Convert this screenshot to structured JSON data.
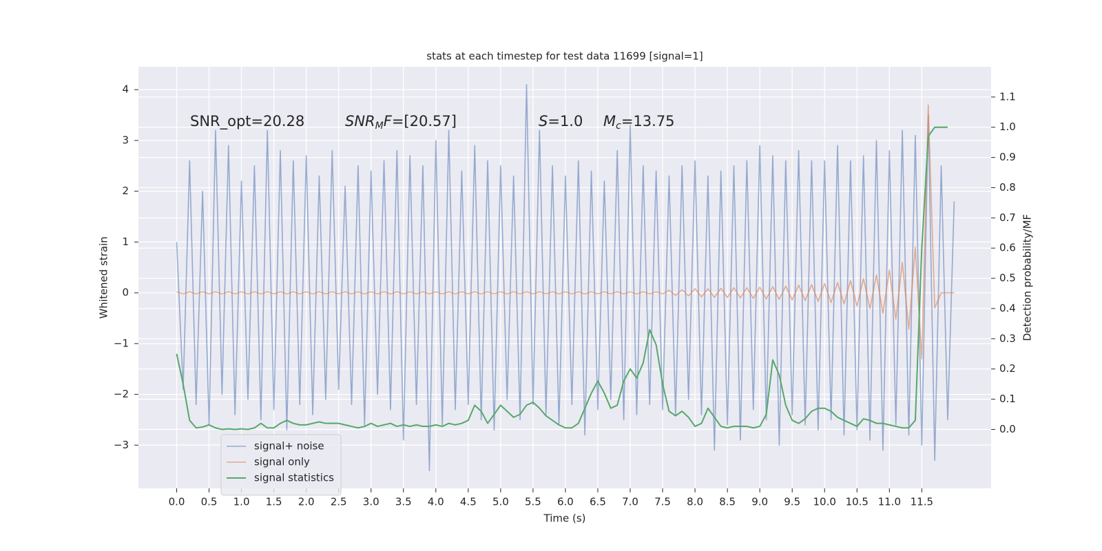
{
  "chart_data": {
    "type": "line",
    "title": "stats at each timestep for test data 11699 [signal=1]",
    "xlabel": "Time (s)",
    "ylabel": "Whitened strain",
    "y2label": "Detection probability/MF",
    "annotations": [
      [
        "SNR_opt=20.28"
      ],
      [
        "SNR",
        "M",
        "F",
        "=[20.57]"
      ],
      [
        "S",
        "=1.0"
      ],
      [
        "M",
        "c",
        "=13.75"
      ]
    ],
    "xlim": [
      -0.59,
      12.57
    ],
    "ylim": [
      -3.85,
      4.45
    ],
    "y2lim": [
      -0.195,
      1.2
    ],
    "xticks": [
      {
        "value": 0,
        "label": "0.0"
      },
      0.5,
      {
        "value": 1,
        "label": "1.0"
      },
      1.5,
      {
        "value": 2,
        "label": "2.0"
      },
      2.5,
      {
        "value": 3,
        "label": "3.0"
      },
      3.5,
      {
        "value": 4,
        "label": "4.0"
      },
      4.5,
      {
        "value": 5,
        "label": "5.0"
      },
      5.5,
      {
        "value": 6,
        "label": "6.0"
      },
      6.5,
      {
        "value": 7,
        "label": "7.0"
      },
      7.5,
      {
        "value": 8,
        "label": "8.0"
      },
      8.5,
      {
        "value": 9,
        "label": "9.0"
      },
      9.5,
      {
        "value": 10,
        "label": "10.0"
      },
      10.5,
      {
        "value": 11,
        "label": "11.0"
      },
      11.5
    ],
    "yticks": [
      {
        "value": -3,
        "label": "−3"
      },
      {
        "value": -2,
        "label": "−2"
      },
      {
        "value": -1,
        "label": "−1"
      },
      0,
      1,
      2,
      3,
      4
    ],
    "y2ticks": [
      {
        "value": 0,
        "label": "0.0"
      },
      0.1,
      0.2,
      0.3,
      0.4,
      0.5,
      0.6,
      0.7,
      0.8,
      0.9,
      {
        "value": 1,
        "label": "1.0"
      },
      1.1
    ],
    "grid": true,
    "legend": "lower left",
    "series": [
      {
        "name": "signal+ noise",
        "color": "#4c72b0",
        "x": [
          0,
          0.1,
          0.2,
          0.3,
          0.4,
          0.5,
          0.6,
          0.7,
          0.8,
          0.9,
          1,
          1.1,
          1.2,
          1.3,
          1.4,
          1.5,
          1.6,
          1.7,
          1.8,
          1.9,
          2,
          2.1,
          2.2,
          2.3,
          2.4,
          2.5,
          2.6,
          2.7,
          2.8,
          2.9,
          3,
          3.1,
          3.2,
          3.3,
          3.4,
          3.5,
          3.6,
          3.7,
          3.8,
          3.9,
          4,
          4.1,
          4.2,
          4.3,
          4.4,
          4.5,
          4.6,
          4.7,
          4.8,
          4.9,
          5,
          5.1,
          5.2,
          5.3,
          5.4,
          5.5,
          5.6,
          5.7,
          5.8,
          5.9,
          6,
          6.1,
          6.2,
          6.3,
          6.4,
          6.5,
          6.6,
          6.7,
          6.8,
          6.9,
          7,
          7.1,
          7.2,
          7.3,
          7.4,
          7.5,
          7.6,
          7.7,
          7.8,
          7.9,
          8,
          8.1,
          8.2,
          8.3,
          8.4,
          8.5,
          8.6,
          8.7,
          8.8,
          8.9,
          9,
          9.1,
          9.2,
          9.3,
          9.4,
          9.5,
          9.6,
          9.7,
          9.8,
          9.9,
          10,
          10.1,
          10.2,
          10.3,
          10.4,
          10.5,
          10.6,
          10.7,
          10.8,
          10.9,
          11,
          11.1,
          11.2,
          11.3,
          11.4,
          11.5,
          11.6,
          11.7,
          11.8,
          11.9,
          12
        ],
        "values": [
          1.0,
          -1.9,
          2.6,
          -2.2,
          2.0,
          -2.6,
          3.2,
          -2.0,
          2.9,
          -2.4,
          2.2,
          -2.1,
          2.5,
          -2.5,
          3.2,
          -2.3,
          2.8,
          -2.7,
          2.6,
          -2.2,
          2.7,
          -2.4,
          2.3,
          -2.1,
          2.8,
          -1.9,
          2.1,
          -2.2,
          2.5,
          -2.6,
          2.4,
          -2.0,
          2.6,
          -2.3,
          2.8,
          -2.9,
          2.7,
          -2.2,
          2.5,
          -3.5,
          3.0,
          -2.6,
          3.2,
          -2.3,
          2.4,
          -2.2,
          2.9,
          -2.5,
          2.6,
          -2.7,
          2.5,
          -2.1,
          2.3,
          -2.5,
          4.1,
          -2.2,
          3.2,
          -2.4,
          2.5,
          -2.6,
          2.3,
          -2.2,
          2.6,
          -2.8,
          2.4,
          -2.3,
          2.2,
          -2.1,
          2.8,
          -2.5,
          3.3,
          -2.4,
          2.5,
          -2.2,
          2.4,
          -2.3,
          2.3,
          -2.4,
          2.5,
          -2.1,
          2.6,
          -2.4,
          2.3,
          -3.1,
          2.4,
          -2.6,
          2.5,
          -2.9,
          2.6,
          -2.3,
          2.9,
          -2.5,
          2.7,
          -3.0,
          2.6,
          -2.4,
          2.8,
          -2.6,
          2.6,
          -2.7,
          2.6,
          -2.5,
          2.9,
          -2.8,
          2.6,
          -2.7,
          2.7,
          -2.9,
          3.0,
          -3.1,
          2.8,
          -2.6,
          3.2,
          -2.8,
          3.1,
          -3.0,
          3.5,
          -3.3,
          2.5,
          -2.5,
          1.8
        ]
      },
      {
        "name": "signal only",
        "color": "#dd8452",
        "x": [
          0,
          0.1,
          0.2,
          0.3,
          0.4,
          0.5,
          0.6,
          0.7,
          0.8,
          0.9,
          1,
          1.1,
          1.2,
          1.3,
          1.4,
          1.5,
          1.6,
          1.7,
          1.8,
          1.9,
          2,
          2.1,
          2.2,
          2.3,
          2.4,
          2.5,
          2.6,
          2.7,
          2.8,
          2.9,
          3,
          3.1,
          3.2,
          3.3,
          3.4,
          3.5,
          3.6,
          3.7,
          3.8,
          3.9,
          4,
          4.1,
          4.2,
          4.3,
          4.4,
          4.5,
          4.6,
          4.7,
          4.8,
          4.9,
          5,
          5.1,
          5.2,
          5.3,
          5.4,
          5.5,
          5.6,
          5.7,
          5.8,
          5.9,
          6,
          6.1,
          6.2,
          6.3,
          6.4,
          6.5,
          6.6,
          6.7,
          6.8,
          6.9,
          7,
          7.1,
          7.2,
          7.3,
          7.4,
          7.5,
          7.6,
          7.7,
          7.8,
          7.9,
          8,
          8.1,
          8.2,
          8.3,
          8.4,
          8.5,
          8.6,
          8.7,
          8.8,
          8.9,
          9,
          9.1,
          9.2,
          9.3,
          9.4,
          9.5,
          9.6,
          9.7,
          9.8,
          9.9,
          10,
          10.1,
          10.2,
          10.3,
          10.4,
          10.5,
          10.6,
          10.7,
          10.8,
          10.9,
          11,
          11.1,
          11.2,
          11.3,
          11.4,
          11.5,
          11.6,
          11.7,
          11.8,
          11.9,
          12
        ],
        "values": [
          0.02,
          -0.02,
          0.02,
          -0.02,
          0.02,
          -0.02,
          0.02,
          -0.02,
          0.02,
          -0.02,
          0.02,
          -0.02,
          0.02,
          -0.02,
          0.02,
          -0.02,
          0.02,
          -0.02,
          0.02,
          -0.02,
          0.02,
          -0.02,
          0.02,
          -0.02,
          0.02,
          -0.02,
          0.02,
          -0.02,
          0.02,
          -0.02,
          0.02,
          -0.02,
          0.02,
          -0.02,
          0.02,
          -0.02,
          0.02,
          -0.02,
          0.02,
          -0.02,
          0.02,
          -0.02,
          0.02,
          -0.02,
          0.02,
          -0.02,
          0.02,
          -0.02,
          0.02,
          -0.02,
          0.02,
          -0.02,
          0.02,
          -0.02,
          0.02,
          -0.02,
          0.02,
          -0.02,
          0.02,
          -0.02,
          0.02,
          -0.02,
          0.02,
          -0.02,
          0.02,
          -0.02,
          0.02,
          -0.02,
          0.02,
          -0.02,
          0.02,
          -0.02,
          0.02,
          -0.02,
          0.02,
          -0.02,
          0.05,
          -0.05,
          0.06,
          -0.06,
          0.08,
          -0.08,
          0.08,
          -0.09,
          0.09,
          -0.09,
          0.1,
          -0.1,
          0.1,
          -0.11,
          0.11,
          -0.12,
          0.12,
          -0.13,
          0.13,
          -0.14,
          0.15,
          -0.15,
          0.16,
          -0.17,
          0.18,
          -0.19,
          0.2,
          -0.22,
          0.24,
          -0.26,
          0.28,
          -0.31,
          0.35,
          -0.4,
          0.45,
          -0.52,
          0.6,
          -0.72,
          0.9,
          -1.3,
          3.7,
          -0.3,
          0.0,
          0.0,
          0.0
        ]
      },
      {
        "name": "signal statistics",
        "color": "#55a868",
        "axis": "y2",
        "x": [
          0,
          0.1,
          0.2,
          0.3,
          0.4,
          0.5,
          0.6,
          0.7,
          0.8,
          0.9,
          1,
          1.1,
          1.2,
          1.3,
          1.4,
          1.5,
          1.6,
          1.7,
          1.8,
          1.9,
          2,
          2.1,
          2.2,
          2.3,
          2.4,
          2.5,
          2.6,
          2.7,
          2.8,
          2.9,
          3,
          3.1,
          3.2,
          3.3,
          3.4,
          3.5,
          3.6,
          3.7,
          3.8,
          3.9,
          4,
          4.1,
          4.2,
          4.3,
          4.4,
          4.5,
          4.6,
          4.7,
          4.8,
          4.9,
          5,
          5.1,
          5.2,
          5.3,
          5.4,
          5.5,
          5.6,
          5.7,
          5.8,
          5.9,
          6,
          6.1,
          6.2,
          6.3,
          6.4,
          6.5,
          6.6,
          6.7,
          6.8,
          6.9,
          7,
          7.1,
          7.2,
          7.3,
          7.4,
          7.5,
          7.6,
          7.7,
          7.8,
          7.9,
          8,
          8.1,
          8.2,
          8.3,
          8.4,
          8.5,
          8.6,
          8.7,
          8.8,
          8.9,
          9,
          9.1,
          9.2,
          9.3,
          9.4,
          9.5,
          9.6,
          9.7,
          9.8,
          9.9,
          10,
          10.1,
          10.2,
          10.3,
          10.4,
          10.5,
          10.6,
          10.7,
          10.8,
          10.9,
          11,
          11.1,
          11.2,
          11.3,
          11.4,
          11.5,
          11.6,
          11.7,
          11.8,
          11.9
        ],
        "values": [
          0.25,
          0.15,
          0.03,
          0.005,
          0.008,
          0.015,
          0.005,
          0.0,
          0.002,
          0.0,
          0.002,
          0.0,
          0.005,
          0.02,
          0.005,
          0.005,
          0.02,
          0.03,
          0.02,
          0.015,
          0.015,
          0.02,
          0.025,
          0.02,
          0.02,
          0.02,
          0.015,
          0.01,
          0.005,
          0.01,
          0.02,
          0.01,
          0.015,
          0.02,
          0.01,
          0.015,
          0.01,
          0.015,
          0.01,
          0.01,
          0.015,
          0.01,
          0.02,
          0.015,
          0.02,
          0.03,
          0.08,
          0.06,
          0.02,
          0.05,
          0.08,
          0.06,
          0.04,
          0.05,
          0.08,
          0.09,
          0.07,
          0.045,
          0.03,
          0.015,
          0.005,
          0.005,
          0.02,
          0.07,
          0.12,
          0.16,
          0.12,
          0.07,
          0.08,
          0.16,
          0.2,
          0.17,
          0.22,
          0.33,
          0.28,
          0.15,
          0.06,
          0.045,
          0.06,
          0.04,
          0.01,
          0.02,
          0.07,
          0.04,
          0.01,
          0.005,
          0.01,
          0.01,
          0.01,
          0.005,
          0.01,
          0.05,
          0.23,
          0.18,
          0.08,
          0.03,
          0.02,
          0.035,
          0.06,
          0.07,
          0.07,
          0.06,
          0.04,
          0.03,
          0.02,
          0.01,
          0.035,
          0.03,
          0.02,
          0.02,
          0.015,
          0.01,
          0.005,
          0.005,
          0.03,
          0.6,
          0.97,
          1.0,
          1.0,
          1.0
        ]
      }
    ]
  }
}
